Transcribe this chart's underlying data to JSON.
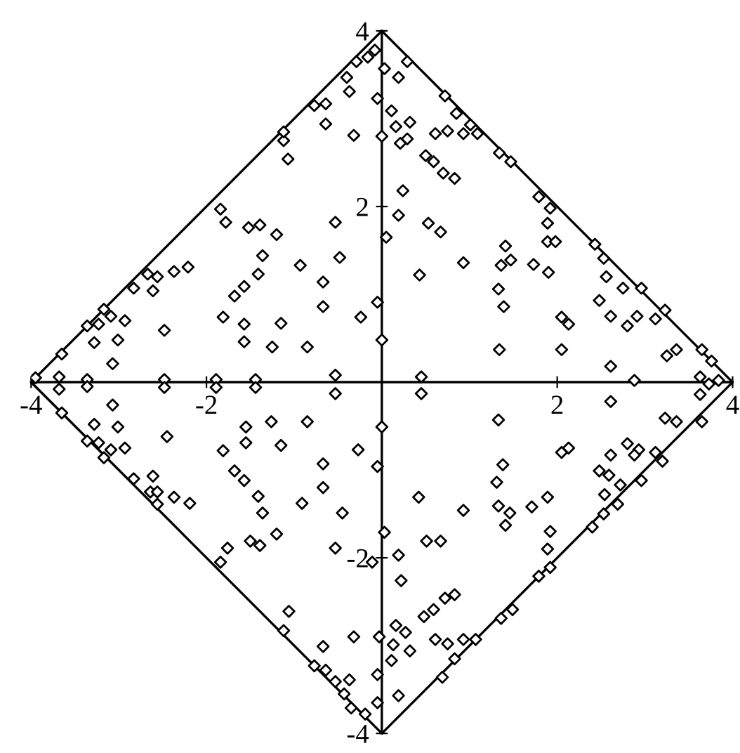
{
  "chart_data": {
    "type": "scatter",
    "xlim": [
      -4,
      4
    ],
    "ylim": [
      -4,
      4
    ],
    "xticks": [
      -4,
      -2,
      2,
      4
    ],
    "yticks": [
      -4,
      -2,
      2,
      4
    ],
    "grid": false,
    "legend": false,
    "series": [
      {
        "type": "line",
        "color": "#000000",
        "marker": "none",
        "line_style": "solid",
        "x": [
          -4,
          0,
          4
        ],
        "values": [
          0,
          4,
          0
        ]
      },
      {
        "type": "line",
        "color": "#000000",
        "marker": "none",
        "line_style": "solid",
        "x": [
          -4,
          0,
          4
        ],
        "values": [
          0,
          -4,
          0
        ]
      },
      {
        "color": "#000000",
        "marker": "diamond",
        "x": [
          -0.16,
          -0.29,
          -0.4,
          -0.37,
          -0.64,
          -0.64,
          -0.32,
          -1.12,
          -1.07,
          -1.84,
          -1.78,
          -1.52,
          -1.39,
          -1.2,
          -0.53,
          -1.36,
          -1.41,
          -0.93,
          -0.48,
          -0.67,
          -1.57,
          -1.68,
          -0.67,
          -0.05,
          -0.24,
          -1.81,
          -1.57,
          -1.57,
          -1.25,
          -0.85,
          -1.15,
          -0.53,
          -1.44,
          -1.89,
          -2.48,
          -3.36,
          -3.68,
          -2.48,
          -3.07,
          -3.28,
          -3.01,
          -2.93,
          -3.09,
          -3.23,
          -2.61,
          -2.56,
          -2.37,
          -2.21,
          -2.83,
          -3.65,
          -3.36,
          -3.17,
          -2.67,
          -1.12,
          -0.77,
          -3.95,
          0,
          0,
          -0.08,
          -0.05,
          0.29,
          0.19,
          0.03,
          0.11,
          0.16,
          0.32,
          0.21,
          0.29,
          0.61,
          0.75,
          0.72,
          0.85,
          0.93,
          1.01,
          1.09,
          0.5,
          0.59,
          0.7,
          0.83,
          1.34,
          1.47,
          0.24,
          0.19,
          0.53,
          0.67,
          0.05,
          1.79,
          1.92,
          1.89,
          1.89,
          1.98,
          1.41,
          1.36,
          1.47,
          1.73,
          1.9,
          0.93,
          0.43,
          1.33,
          1.39,
          2.43,
          2.53,
          2.56,
          2.75,
          2.48,
          2.61,
          2.96,
          2.91,
          2.8,
          3.12,
          3.23,
          2.05,
          2.13,
          2.05,
          1.34,
          2.61,
          2.88,
          3.25,
          3.36,
          3.65,
          3.76,
          3.63,
          3.84,
          0.45,
          -3.68,
          -3.36,
          -2.48,
          -1.89,
          -1.44,
          -0.53,
          -3.07,
          -3.28,
          -3.01,
          -2.93,
          -3.23,
          -3.09,
          -2.45,
          -1.81,
          -1.55,
          -1.55,
          -1.26,
          -1.15,
          -0.85,
          -0.67,
          -0.27,
          -0.05,
          -1.68,
          -1.57,
          -1.41,
          -1.36,
          -0.91,
          -0.67,
          -0.45,
          -1.2,
          -1.5,
          -1.39,
          -1.76,
          -1.84,
          -0.53,
          -0.11,
          -2.61,
          -2.83,
          -2.64,
          -2.56,
          -2.37,
          -2.19,
          -2.56,
          -3.65,
          -3.36,
          -3.17,
          -1.06,
          -1.12,
          -0.67,
          -0.32,
          -0.77,
          -0.64,
          -0.53,
          -0.37,
          -0.43,
          -0.35,
          -0.19,
          -0.05,
          -0.05,
          -0.03,
          0,
          0.45,
          1.33,
          2.61,
          3.23,
          3.36,
          3.63,
          3.73,
          2.05,
          2.13,
          1.38,
          1.31,
          2.8,
          2.93,
          2.88,
          3.12,
          2.61,
          2.48,
          2.59,
          2.72,
          2.54,
          0.42,
          0.93,
          1.33,
          1.46,
          1.41,
          1.71,
          1.89,
          1.92,
          1.89,
          1.79,
          0.51,
          0.67,
          0.03,
          0.19,
          0.22,
          0.48,
          0.59,
          0.72,
          0.83,
          0.16,
          0.27,
          0.13,
          0.32,
          0.11,
          0.61,
          0.75,
          0.93,
          1.07,
          0.83,
          0.19,
          1.36,
          1.49,
          1.92,
          0.69,
          2.4,
          2.53,
          2.69,
          2.96,
          3.2,
          3.65
        ],
        "values": [
          3.7,
          3.65,
          3.47,
          3.31,
          3.17,
          2.94,
          2.81,
          2.75,
          2.54,
          1.97,
          1.82,
          1.76,
          1.79,
          1.68,
          1.82,
          1.44,
          1.23,
          1.33,
          1.42,
          1.14,
          1.09,
          0.98,
          0.86,
          0.91,
          0.74,
          0.74,
          0.66,
          0.46,
          0.4,
          0.4,
          0.67,
          0.08,
          0.03,
          0.03,
          0.03,
          0.03,
          0.06,
          0.59,
          0.21,
          0.45,
          0.48,
          0.7,
          0.75,
          0.66,
          1.04,
          1.2,
          1.26,
          1.31,
          1.07,
          0.32,
          0.64,
          0.83,
          1.23,
          2.85,
          3.15,
          0.05,
          2.8,
          0.48,
          3.78,
          3.23,
          3.65,
          3.47,
          3.57,
          3.09,
          2.91,
          2.96,
          2.72,
          2.77,
          2.83,
          2.86,
          3.26,
          3.06,
          2.83,
          2.93,
          2.83,
          2.58,
          2.51,
          2.38,
          2.32,
          2.61,
          2.51,
          2.18,
          1.9,
          1.81,
          1.71,
          1.65,
          2.11,
          1.98,
          1.81,
          1.6,
          1.6,
          1.55,
          1.33,
          1.39,
          1.34,
          1.25,
          1.36,
          1.22,
          1.06,
          0.86,
          1.57,
          1.41,
          1.2,
          1.07,
          0.93,
          0.75,
          1.07,
          0.75,
          0.64,
          0.72,
          0.82,
          0.74,
          0.66,
          0.37,
          0.37,
          0.18,
          0.02,
          0.3,
          0.37,
          0.37,
          0.24,
          0.06,
          0.02,
          0.06,
          -0.08,
          -0.05,
          -0.06,
          -0.06,
          -0.06,
          -0.13,
          -0.26,
          -0.48,
          -0.51,
          -0.75,
          -0.69,
          -0.77,
          -0.62,
          -0.78,
          -0.51,
          -0.69,
          -0.45,
          -0.72,
          -0.45,
          -0.93,
          -0.77,
          -0.96,
          -1.01,
          -1.12,
          -1.3,
          -1.49,
          -1.38,
          -1.2,
          -1.49,
          -1.73,
          -1.81,
          -1.86,
          -1.89,
          -2.05,
          -1.89,
          -2.05,
          -1.07,
          -1.1,
          -1.25,
          -1.25,
          -1.31,
          -1.38,
          -1.39,
          -0.35,
          -0.67,
          -0.86,
          -2.61,
          -2.83,
          -3.01,
          -2.9,
          -3.23,
          -3.28,
          -3.41,
          -3.39,
          -3.55,
          -3.71,
          -3.78,
          -3.33,
          -3.65,
          -2.9,
          -0.51,
          -0.13,
          -0.43,
          -0.22,
          -0.41,
          -0.45,
          -0.14,
          -0.02,
          -0.8,
          -0.75,
          -0.94,
          -1.14,
          -0.7,
          -0.77,
          -0.83,
          -0.8,
          -0.83,
          -1.01,
          -1.06,
          -1.17,
          -1.28,
          -1.31,
          -1.46,
          -1.41,
          -1.49,
          -1.63,
          -1.42,
          -1.31,
          -1.7,
          -1.9,
          -2.21,
          -1.81,
          -1.81,
          -1.71,
          -1.97,
          -2.26,
          -2.67,
          -2.59,
          -2.46,
          -2.42,
          -2.77,
          -2.85,
          -2.99,
          -3.06,
          -3.17,
          -2.93,
          -2.98,
          -2.93,
          -2.93,
          -3.15,
          -3.57,
          -2.69,
          -2.59,
          -2.11,
          -3.36,
          -1.65,
          -1.5,
          -1.39,
          -1.12,
          -0.9,
          -0.45
        ]
      }
    ]
  }
}
